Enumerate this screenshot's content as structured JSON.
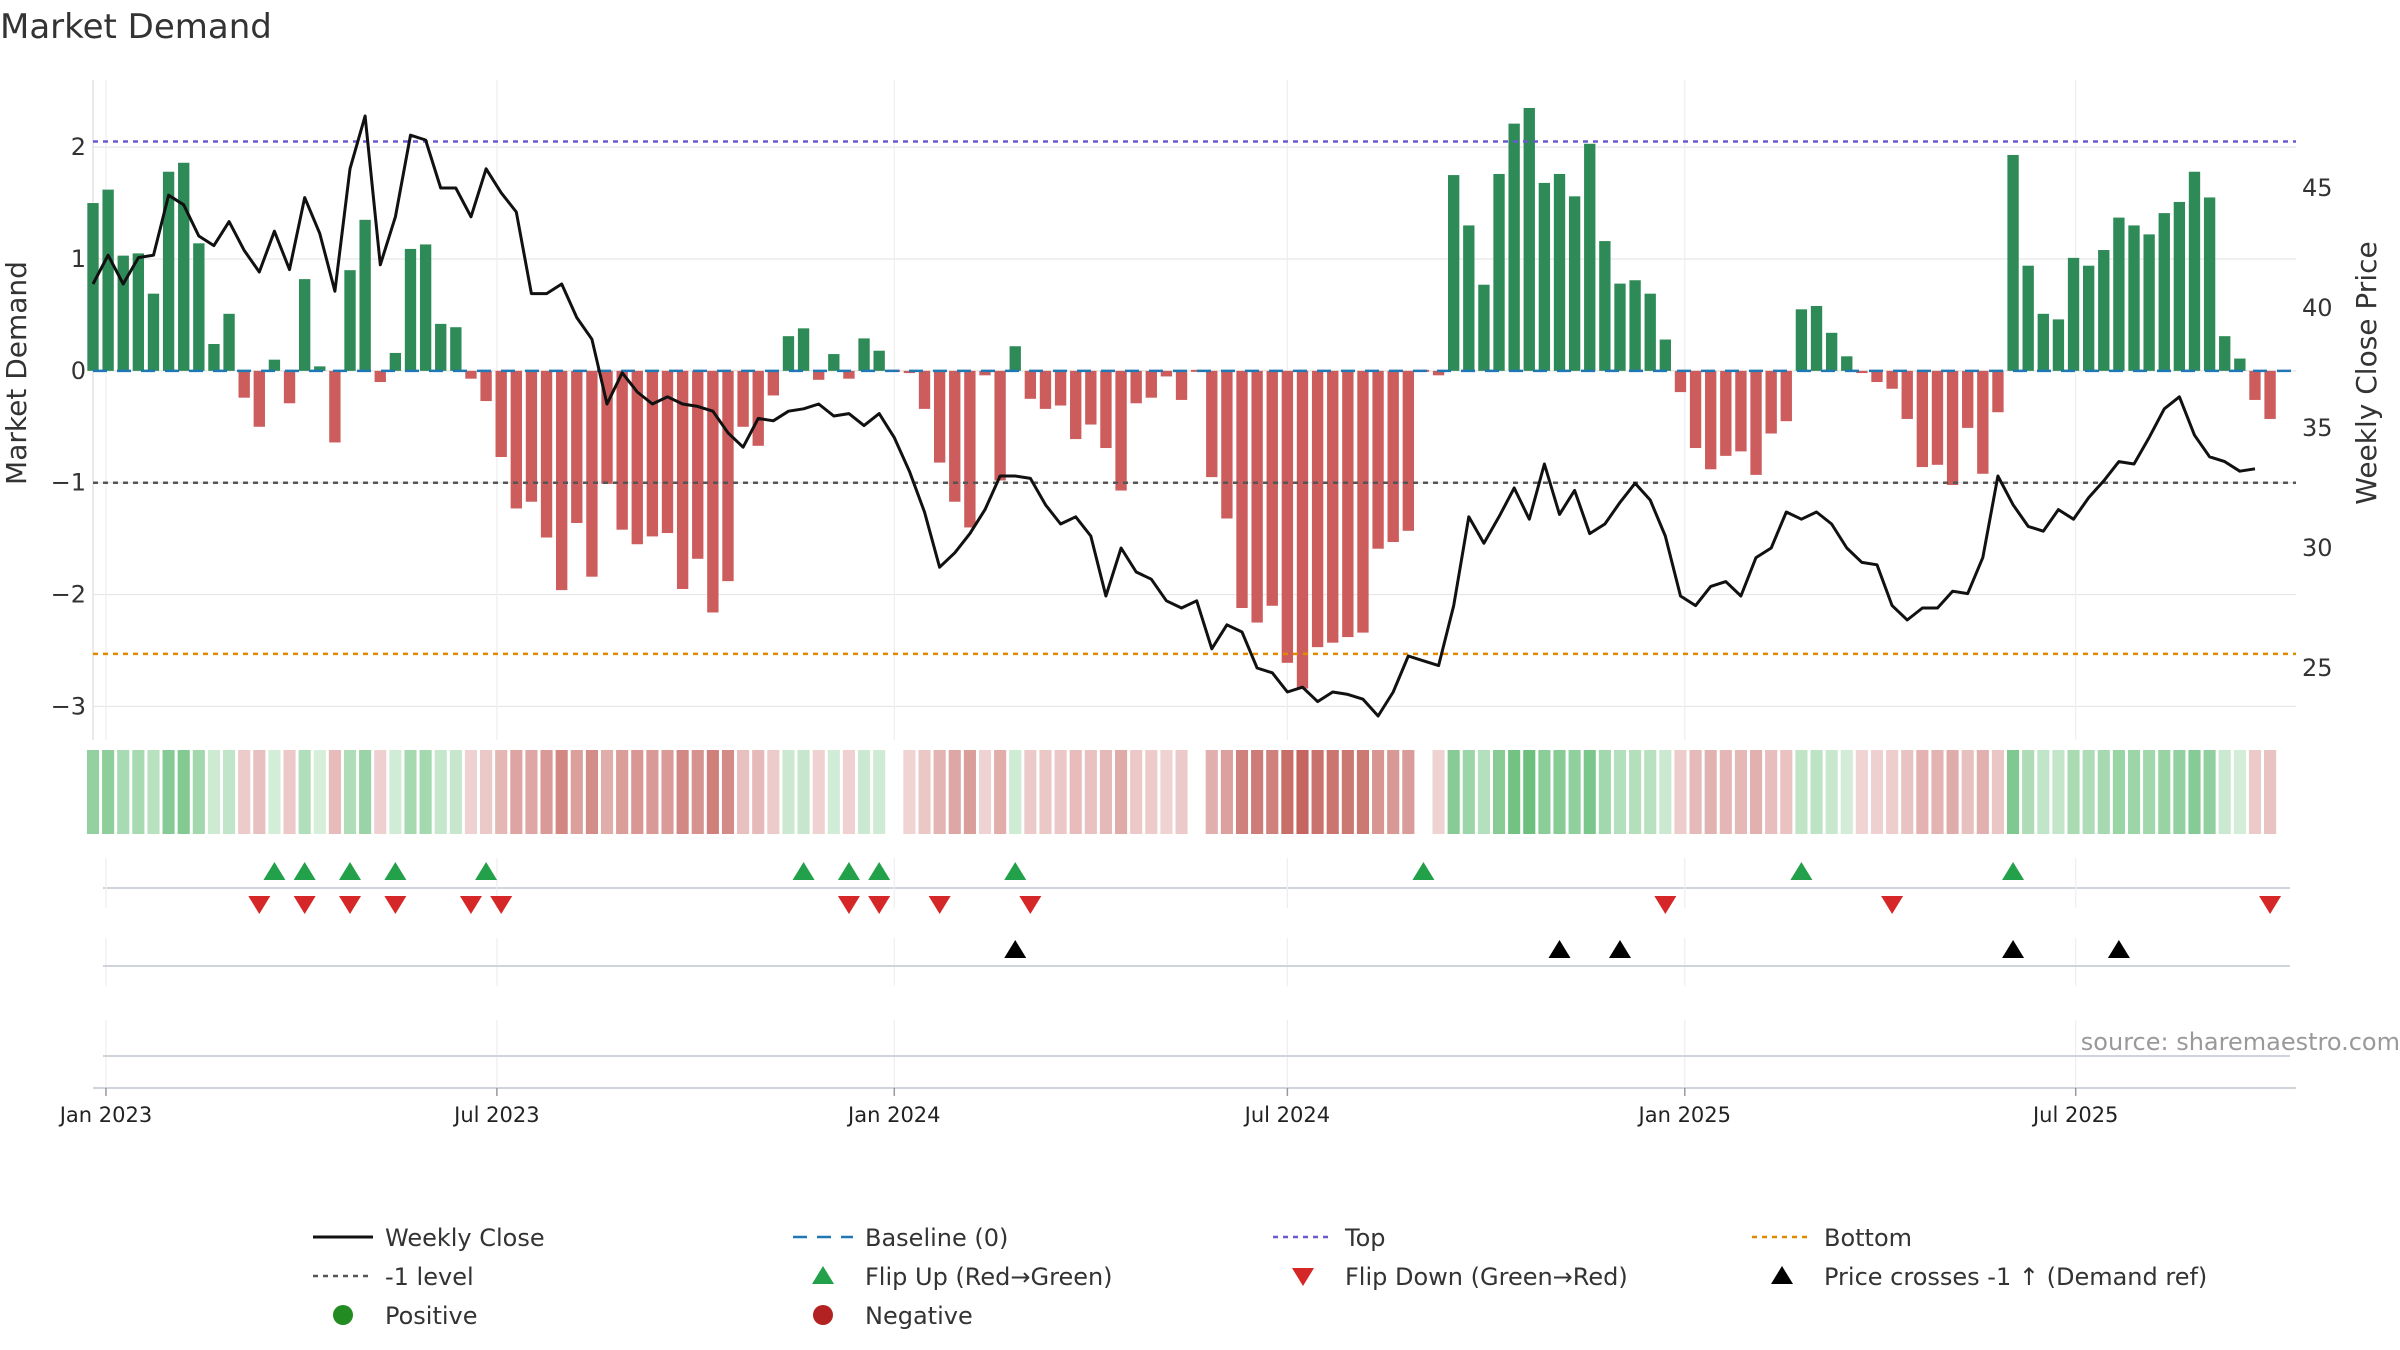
{
  "chart_data": {
    "type": "bar",
    "title": "Market Demand",
    "ylabel_left": "Market Demand",
    "ylabel_right": "Weekly Close Price",
    "ylim_left": [
      -3.3,
      2.6
    ],
    "ylim_right": [
      22,
      49.5
    ],
    "yticks_left": [
      {
        "v": 2,
        "label": "2"
      },
      {
        "v": 1,
        "label": "1"
      },
      {
        "v": 0,
        "label": "0"
      },
      {
        "v": -1,
        "label": "−1"
      },
      {
        "v": -2,
        "label": "−2"
      },
      {
        "v": -3,
        "label": "−3"
      }
    ],
    "yticks_right": [
      {
        "v": 45,
        "label": "45"
      },
      {
        "v": 40,
        "label": "40"
      },
      {
        "v": 35,
        "label": "35"
      },
      {
        "v": 30,
        "label": "30"
      },
      {
        "v": 25,
        "label": "25"
      }
    ],
    "x_start": "2022-12-26",
    "x_end": "2025-10-11",
    "x_ticks": [
      {
        "date": "2023-01-01",
        "label": "Jan 2023"
      },
      {
        "date": "2023-07-01",
        "label": "Jul 2023"
      },
      {
        "date": "2024-01-01",
        "label": "Jan 2024"
      },
      {
        "date": "2024-07-01",
        "label": "Jul 2024"
      },
      {
        "date": "2025-01-01",
        "label": "Jan 2025"
      },
      {
        "date": "2025-07-01",
        "label": "Jul 2025"
      }
    ],
    "first_week": "2022-12-26",
    "weeks": 142,
    "demand": [
      1.5,
      1.62,
      1.03,
      1.05,
      0.69,
      1.78,
      1.86,
      1.14,
      0.24,
      0.51,
      -0.24,
      -0.5,
      0.1,
      -0.29,
      0.82,
      0.04,
      -0.64,
      0.9,
      1.35,
      -0.1,
      0.16,
      1.09,
      1.13,
      0.42,
      0.39,
      -0.07,
      -0.27,
      -0.77,
      -1.23,
      -1.17,
      -1.49,
      -1.96,
      -1.36,
      -1.84,
      -1.01,
      -1.42,
      -1.55,
      -1.48,
      -1.45,
      -1.95,
      -1.68,
      -2.16,
      -1.88,
      -0.5,
      -0.67,
      -0.22,
      0.31,
      0.38,
      -0.08,
      0.15,
      -0.07,
      0.29,
      0.18,
      0.0,
      -0.02,
      -0.34,
      -0.82,
      -1.17,
      -1.4,
      -0.04,
      -0.98,
      0.22,
      -0.25,
      -0.34,
      -0.31,
      -0.61,
      -0.48,
      -0.69,
      -1.07,
      -0.29,
      -0.24,
      -0.05,
      -0.26,
      0.0,
      -0.95,
      -1.32,
      -2.12,
      -2.25,
      -2.1,
      -2.61,
      -2.84,
      -2.47,
      -2.43,
      -2.38,
      -2.34,
      -1.59,
      -1.53,
      -1.43,
      0.0,
      -0.04,
      1.75,
      1.3,
      0.77,
      1.76,
      2.21,
      2.35,
      1.68,
      1.76,
      1.56,
      2.03,
      1.16,
      0.78,
      0.81,
      0.69,
      0.28,
      -0.19,
      -0.69,
      -0.88,
      -0.76,
      -0.72,
      -0.93,
      -0.56,
      -0.45,
      0.55,
      0.58,
      0.34,
      0.13,
      -0.02,
      -0.1,
      -0.16,
      -0.43,
      -0.86,
      -0.84,
      -1.02,
      -0.51,
      -0.92,
      -0.37,
      1.93,
      0.94,
      0.51,
      0.46,
      1.01,
      0.94,
      1.08,
      1.37,
      1.3,
      1.22,
      1.41,
      1.51,
      1.78,
      1.55,
      0.31,
      0.11,
      -0.26,
      -0.43
    ],
    "close": [
      41.0,
      42.2,
      41.0,
      42.1,
      42.2,
      44.7,
      44.3,
      43.0,
      42.6,
      43.6,
      42.4,
      41.5,
      43.2,
      41.6,
      44.6,
      43.1,
      40.7,
      45.8,
      48.0,
      41.8,
      43.8,
      47.2,
      47.0,
      45.0,
      45.0,
      43.8,
      45.8,
      44.8,
      44.0,
      40.6,
      40.6,
      41.0,
      39.6,
      38.7,
      36.0,
      37.3,
      36.5,
      36.0,
      36.3,
      36.0,
      35.9,
      35.7,
      34.8,
      34.2,
      35.4,
      35.3,
      35.7,
      35.8,
      36.0,
      35.5,
      35.6,
      35.1,
      35.6,
      34.6,
      33.2,
      31.5,
      29.2,
      29.8,
      30.6,
      31.6,
      33.0,
      33.0,
      32.9,
      31.8,
      31.0,
      31.3,
      30.5,
      28.0,
      30.0,
      29.0,
      28.7,
      27.8,
      27.5,
      27.8,
      25.8,
      26.8,
      26.5,
      25.0,
      24.8,
      24.0,
      24.2,
      23.6,
      24.0,
      23.9,
      23.7,
      23.0,
      24.0,
      25.5,
      25.3,
      25.1,
      27.6,
      31.3,
      30.2,
      31.3,
      32.5,
      31.2,
      33.5,
      31.4,
      32.4,
      30.6,
      31.0,
      31.9,
      32.7,
      32.0,
      30.5,
      28.0,
      27.6,
      28.4,
      28.6,
      28.0,
      29.6,
      30.0,
      31.5,
      31.2,
      31.5,
      31.0,
      30.0,
      29.4,
      29.3,
      27.6,
      27.0,
      27.5,
      27.5,
      28.2,
      28.1,
      29.6,
      33.0,
      31.8,
      30.9,
      30.7,
      31.6,
      31.2,
      32.1,
      32.8,
      33.6,
      33.5,
      34.6,
      35.8,
      36.3,
      34.7,
      33.8,
      33.6,
      33.2,
      33.3
    ],
    "top_level": 2.05,
    "bottom_level": -2.53,
    "neg1_level": -1,
    "flip_up_dates": [
      "2023-03-20",
      "2023-04-03",
      "2023-04-24",
      "2023-05-15",
      "2023-06-26",
      "2023-11-20",
      "2023-12-11",
      "2023-12-25",
      "2024-02-26",
      "2024-09-02",
      "2025-02-24",
      "2025-06-02"
    ],
    "flip_down_dates": [
      "2023-03-13",
      "2023-04-03",
      "2023-04-24",
      "2023-05-15",
      "2023-06-19",
      "2023-07-03",
      "2023-12-11",
      "2023-12-25",
      "2024-01-22",
      "2024-03-04",
      "2024-12-23",
      "2025-04-07",
      "2025-09-29"
    ],
    "price_cross_dates": [
      "2024-02-26",
      "2024-11-04",
      "2024-12-02",
      "2025-06-02",
      "2025-07-21"
    ],
    "colors": {
      "positive": "#2e8b57",
      "negative": "#cd5c5c",
      "close": "#111111",
      "baseline": "#1f77b4",
      "top": "#6a5acd",
      "neg1": "#555555",
      "bottom": "#e08a00",
      "flip_up": "#22a04a",
      "flip_down": "#d62728",
      "cross": "#000000",
      "positive_dot": "#228b22",
      "negative_dot": "#b22222"
    },
    "legend": [
      {
        "label": "Weekly Close",
        "kind": "line-solid"
      },
      {
        "label": "Baseline (0)",
        "kind": "line-dash"
      },
      {
        "label": "Top",
        "kind": "line-dot-top"
      },
      {
        "label": "Bottom",
        "kind": "line-dot-bottom"
      },
      {
        "label": "-1 level",
        "kind": "line-dot-neg1"
      },
      {
        "label": "Flip Up (Red→Green)",
        "kind": "tri-up-green"
      },
      {
        "label": "Flip Down (Green→Red)",
        "kind": "tri-down-red"
      },
      {
        "label": "Price crosses -1 ↑ (Demand ref)",
        "kind": "tri-up-black"
      },
      {
        "label": "Positive",
        "kind": "dot-green"
      },
      {
        "label": "Negative",
        "kind": "dot-red"
      }
    ],
    "legend_position": "bottom",
    "grid": true,
    "source": "source: sharemaestro.com"
  }
}
